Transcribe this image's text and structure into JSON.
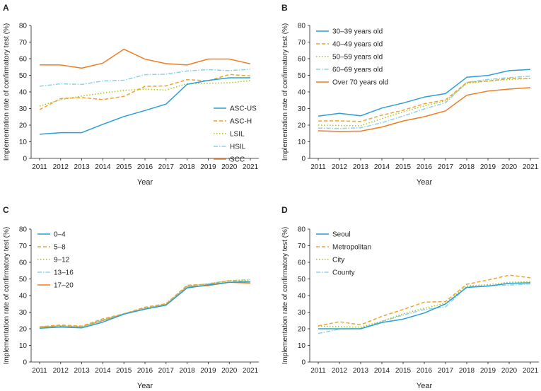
{
  "figure": {
    "x_tick_labels": [
      "2011",
      "2012",
      "2013",
      "2014",
      "2015",
      "2016",
      "2017",
      "2018",
      "2019",
      "2020",
      "2021"
    ]
  },
  "chart_data": [
    {
      "panel": "A",
      "type": "line",
      "title": "",
      "xlabel": "Year",
      "ylabel": "Implementation rate of confirmatory test (%)",
      "x": [
        2011,
        2012,
        2013,
        2014,
        2015,
        2016,
        2017,
        2018,
        2019,
        2020,
        2021
      ],
      "ylim": [
        0,
        80
      ],
      "yticks": [
        0,
        10,
        20,
        30,
        40,
        50,
        60,
        70,
        80
      ],
      "legend_position": "center-right",
      "series": [
        {
          "name": "ASC-US",
          "color": "#2b9fd3",
          "dash": "solid",
          "values": [
            14.5,
            15.5,
            15.5,
            20.5,
            25.2,
            28.8,
            32.7,
            44.6,
            46.9,
            48.5,
            48.5
          ]
        },
        {
          "name": "ASC-H",
          "color": "#f0a32e",
          "dash": "dashed",
          "values": [
            29.3,
            36.0,
            36.6,
            35.4,
            37.3,
            43.3,
            43.6,
            47.4,
            46.7,
            50.5,
            49.6
          ]
        },
        {
          "name": "LSIL",
          "color": "#a8c41b",
          "dash": "dotted",
          "values": [
            31.5,
            35.3,
            37.5,
            39.3,
            40.9,
            41.7,
            41.1,
            45.0,
            45.2,
            45.5,
            46.8
          ]
        },
        {
          "name": "HSIL",
          "color": "#8dd0ec",
          "dash": "dashdot",
          "values": [
            43.4,
            44.9,
            44.5,
            46.6,
            47.0,
            50.4,
            50.7,
            52.6,
            53.4,
            52.8,
            53.6
          ]
        },
        {
          "name": "SCC",
          "color": "#ef7d22",
          "dash": "solid",
          "values": [
            56.3,
            56.2,
            54.3,
            57.3,
            65.7,
            59.7,
            57.0,
            56.2,
            59.8,
            59.8,
            56.9
          ]
        }
      ]
    },
    {
      "panel": "B",
      "type": "line",
      "title": "",
      "xlabel": "Year",
      "ylabel": "Implementation rate of confirmatory test (%)",
      "x": [
        2011,
        2012,
        2013,
        2014,
        2015,
        2016,
        2017,
        2018,
        2019,
        2020,
        2021
      ],
      "ylim": [
        0,
        80
      ],
      "yticks": [
        0,
        10,
        20,
        30,
        40,
        50,
        60,
        70,
        80
      ],
      "legend_position": "top-left",
      "series": [
        {
          "name": "30–39 years old",
          "color": "#2b9fd3",
          "dash": "solid",
          "values": [
            25.4,
            27.1,
            25.6,
            30.3,
            33.3,
            36.9,
            39.0,
            48.8,
            49.9,
            52.8,
            53.5
          ]
        },
        {
          "name": "40–49 years old",
          "color": "#f0a32e",
          "dash": "dashed",
          "values": [
            22.5,
            22.6,
            22.2,
            26.0,
            29.0,
            32.9,
            35.2,
            45.7,
            46.5,
            48.1,
            48.0
          ]
        },
        {
          "name": "50–59 years old",
          "color": "#a8c41b",
          "dash": "dotted",
          "values": [
            20.0,
            19.8,
            19.6,
            23.9,
            28.0,
            31.6,
            34.6,
            45.1,
            46.6,
            47.5,
            48.0
          ]
        },
        {
          "name": "60–69 years old",
          "color": "#8dd0ec",
          "dash": "dashdot",
          "values": [
            18.2,
            18.0,
            18.4,
            21.5,
            25.5,
            29.8,
            33.5,
            45.7,
            47.5,
            48.6,
            49.5
          ]
        },
        {
          "name": "Over 70 years old",
          "color": "#ef7d22",
          "dash": "solid",
          "values": [
            16.6,
            16.2,
            16.4,
            18.9,
            22.5,
            25.1,
            28.6,
            38.0,
            40.5,
            41.7,
            42.6
          ]
        }
      ]
    },
    {
      "panel": "C",
      "type": "line",
      "title": "",
      "xlabel": "Year",
      "ylabel": "Implementation rate of confirmatory test (%)",
      "x": [
        2011,
        2012,
        2013,
        2014,
        2015,
        2016,
        2017,
        2018,
        2019,
        2020,
        2021
      ],
      "ylim": [
        0,
        80
      ],
      "yticks": [
        0,
        10,
        20,
        30,
        40,
        50,
        60,
        70,
        80
      ],
      "legend_position": "top-left",
      "series": [
        {
          "name": "0–4",
          "color": "#2b9fd3",
          "dash": "solid",
          "values": [
            20.3,
            21.0,
            20.5,
            24.0,
            28.8,
            31.8,
            34.2,
            44.6,
            46.4,
            48.0,
            48.3
          ]
        },
        {
          "name": "5–8",
          "color": "#f0a32e",
          "dash": "dashed",
          "values": [
            21.2,
            22.3,
            21.6,
            26.0,
            29.0,
            33.0,
            35.0,
            46.2,
            46.8,
            48.9,
            48.3
          ]
        },
        {
          "name": "9–12",
          "color": "#a8c41b",
          "dash": "dotted",
          "values": [
            21.0,
            21.8,
            21.3,
            25.5,
            29.0,
            32.6,
            35.2,
            45.8,
            47.0,
            49.0,
            49.2
          ]
        },
        {
          "name": "13–16",
          "color": "#8dd0ec",
          "dash": "dashdot",
          "values": [
            21.0,
            21.5,
            21.2,
            25.2,
            29.1,
            32.4,
            34.8,
            45.4,
            47.2,
            49.0,
            49.6
          ]
        },
        {
          "name": "17–20",
          "color": "#ef7d22",
          "dash": "solid",
          "values": [
            21.1,
            21.6,
            21.2,
            25.0,
            29.0,
            32.0,
            34.6,
            45.2,
            46.0,
            48.0,
            47.5
          ]
        }
      ]
    },
    {
      "panel": "D",
      "type": "line",
      "title": "",
      "xlabel": "Year",
      "ylabel": "Implementation rate of confirmatory test (%)",
      "x": [
        2011,
        2012,
        2013,
        2014,
        2015,
        2016,
        2017,
        2018,
        2019,
        2020,
        2021
      ],
      "ylim": [
        0,
        80
      ],
      "yticks": [
        0,
        10,
        20,
        30,
        40,
        50,
        60,
        70,
        80
      ],
      "legend_position": "top-left",
      "series": [
        {
          "name": "Seoul",
          "color": "#2b9fd3",
          "dash": "solid",
          "values": [
            20.0,
            20.0,
            20.0,
            23.8,
            25.8,
            29.5,
            35.0,
            44.9,
            45.7,
            47.3,
            47.7
          ]
        },
        {
          "name": "Metropolitan",
          "color": "#f0a32e",
          "dash": "dashed",
          "values": [
            21.8,
            24.2,
            22.4,
            27.5,
            31.6,
            36.0,
            36.4,
            46.8,
            49.3,
            52.3,
            50.7
          ]
        },
        {
          "name": "City",
          "color": "#a8c41b",
          "dash": "dotted",
          "values": [
            21.6,
            21.2,
            21.0,
            24.5,
            29.0,
            32.4,
            35.4,
            45.8,
            46.5,
            48.0,
            48.4
          ]
        },
        {
          "name": "County",
          "color": "#8dd0ec",
          "dash": "dashdot",
          "values": [
            17.2,
            19.8,
            20.2,
            24.4,
            28.3,
            31.6,
            33.2,
            45.4,
            45.9,
            46.3,
            47.0
          ]
        }
      ]
    }
  ]
}
